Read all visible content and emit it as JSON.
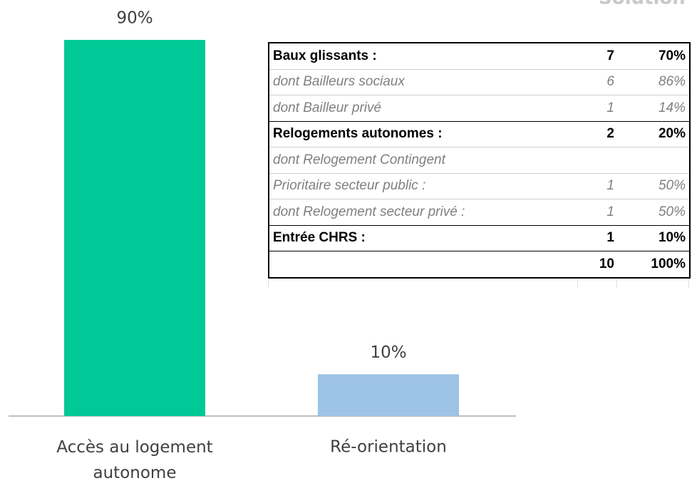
{
  "chart_data": {
    "type": "bar",
    "title": "Solution",
    "categories": [
      "Accès au logement autonome",
      "Ré-orientation"
    ],
    "values": [
      90,
      10
    ],
    "value_labels": [
      "90%",
      "10%"
    ],
    "colors": [
      "#00c896",
      "#9dc3e6"
    ]
  },
  "table": {
    "rows": [
      {
        "style": "bold",
        "cells": [
          "Baux glissants :",
          "7",
          "70%"
        ]
      },
      {
        "style": "italic",
        "cells": [
          "dont Bailleurs sociaux",
          "6",
          "86%"
        ]
      },
      {
        "style": "italic",
        "cells": [
          "dont Bailleur privé",
          "1",
          "14%"
        ]
      },
      {
        "style": "bold",
        "cells": [
          "Relogements autonomes :",
          "2",
          "20%"
        ]
      },
      {
        "style": "italic",
        "cells": [
          "dont Relogement Contingent",
          null,
          null
        ]
      },
      {
        "style": "italic",
        "cells": [
          "Prioritaire secteur public :",
          "1",
          "50%"
        ]
      },
      {
        "style": "italic",
        "cells": [
          "dont Relogement secteur privé :",
          "1",
          "50%"
        ]
      },
      {
        "style": "bold",
        "cells": [
          "Entrée CHRS :",
          "1",
          "10%"
        ]
      },
      {
        "style": "bold",
        "cells": [
          null,
          "10",
          "100%"
        ]
      }
    ]
  }
}
